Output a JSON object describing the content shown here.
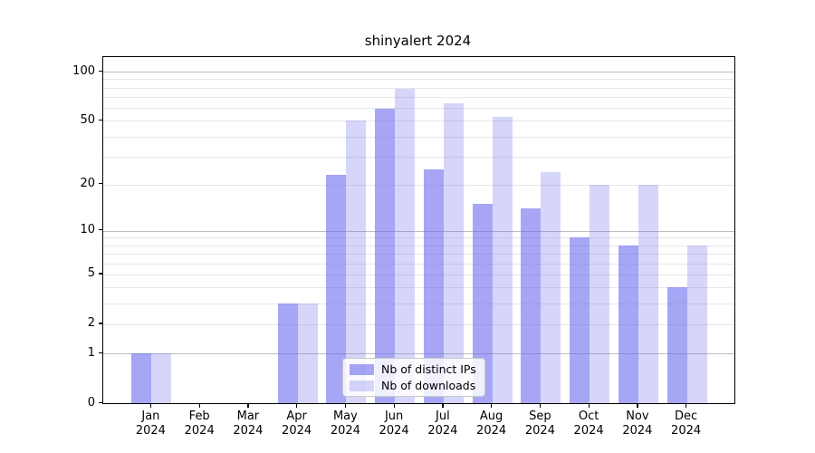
{
  "chart_data": {
    "type": "bar",
    "title": "shinyalert 2024",
    "yscale": "log1p",
    "categories": [
      "Jan",
      "Feb",
      "Mar",
      "Apr",
      "May",
      "Jun",
      "Jul",
      "Aug",
      "Sep",
      "Oct",
      "Nov",
      "Dec"
    ],
    "year_label": "2024",
    "series": [
      {
        "name": "Nb of distinct IPs",
        "color": "rgba(102,102,238,0.58)",
        "values": [
          1,
          0,
          0,
          3,
          23,
          59,
          25,
          15,
          14,
          9,
          8,
          4
        ]
      },
      {
        "name": "Nb of downloads",
        "color": "rgba(102,102,238,0.27)",
        "values": [
          1,
          0,
          0,
          3,
          50,
          79,
          64,
          53,
          24,
          20,
          20,
          8
        ]
      }
    ],
    "ytick_labels": [
      "100",
      "50",
      "20",
      "10",
      "5",
      "2",
      "1",
      "0"
    ],
    "ytick_values": [
      100,
      50,
      20,
      10,
      5,
      2,
      1,
      0
    ],
    "major_gridlines": [
      1,
      10,
      100
    ],
    "minor_gridlines": [
      2,
      3,
      4,
      5,
      6,
      7,
      8,
      9,
      20,
      30,
      40,
      50,
      60,
      70,
      80,
      90
    ],
    "ylim": [
      0,
      122
    ],
    "legend_position": "lower center",
    "grid": "on"
  },
  "colors": {
    "bar_base": "#6666ee",
    "spine": "#000000",
    "major_grid": "#bdbdbd",
    "minor_grid": "#e7e7e7",
    "text": "#000000"
  }
}
